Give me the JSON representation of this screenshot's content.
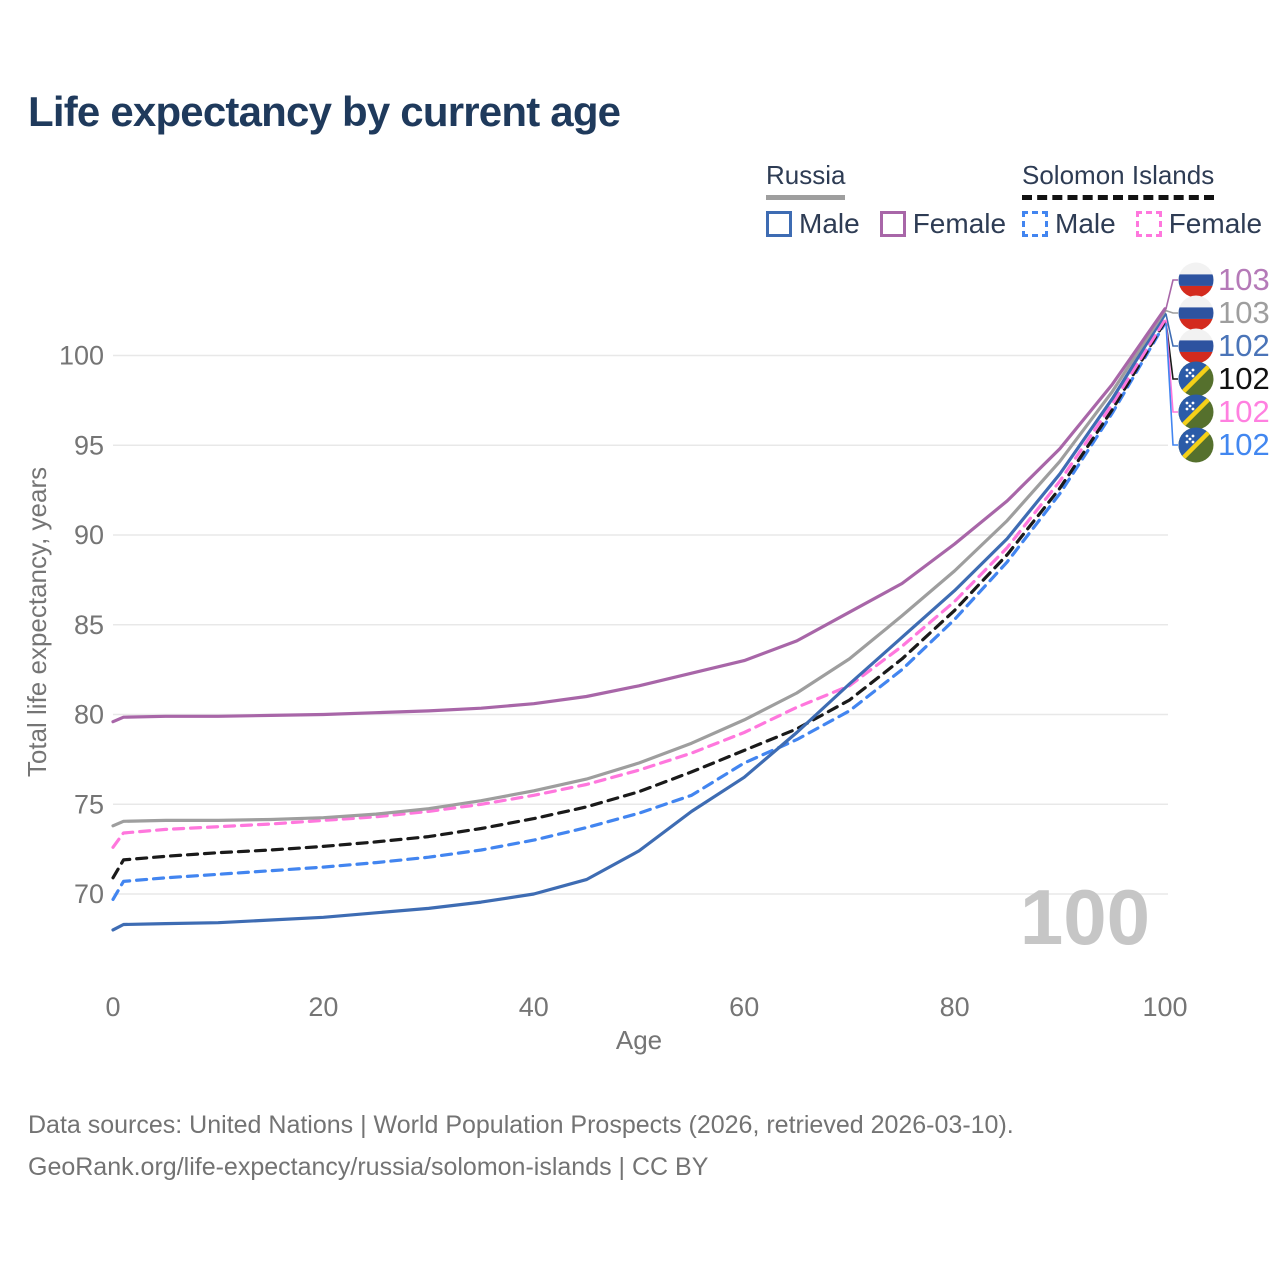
{
  "title": "Life expectancy by current age",
  "legend": {
    "groups": [
      {
        "label": "Russia",
        "line_style": "solid",
        "items": [
          {
            "label": "Male",
            "series": "russia-male"
          },
          {
            "label": "Female",
            "series": "russia-female"
          }
        ]
      },
      {
        "label": "Solomon Islands",
        "line_style": "dashed",
        "items": [
          {
            "label": "Male",
            "series": "si-male"
          },
          {
            "label": "Female",
            "series": "si-female"
          }
        ]
      }
    ]
  },
  "watermark": "100",
  "footer": {
    "line1": "Data sources: United Nations | World Population Prospects (2026, retrieved 2026-03-10).",
    "line2": "GeoRank.org/life-expectancy/russia/solomon-islands | CC BY"
  },
  "colors": {
    "title": "#1f3a5c",
    "axis_text": "#757575",
    "gridline": "#e8e8e8",
    "watermark": "#c6c6c6",
    "footer": "#737373"
  },
  "chart_data": {
    "type": "line",
    "title": "Life expectancy by current age",
    "xlabel": "Age",
    "ylabel": "Total life expectancy, years",
    "x_ticks": [
      0,
      20,
      40,
      60,
      80,
      100
    ],
    "y_ticks": [
      70,
      75,
      80,
      85,
      90,
      95,
      100
    ],
    "xlim": [
      0,
      100
    ],
    "ylim": [
      66,
      104
    ],
    "grid": "horizontal",
    "legend_position": "top-right",
    "x": [
      0,
      1,
      5,
      10,
      15,
      20,
      25,
      30,
      35,
      40,
      45,
      50,
      55,
      60,
      65,
      70,
      75,
      80,
      85,
      90,
      95,
      100
    ],
    "series": [
      {
        "id": "si-male",
        "name": "Solomon Islands Male",
        "country": "solomon-islands",
        "color": "#4285f0",
        "line_style": "dashed",
        "end_label": "102",
        "end_label_color": "#4287f0",
        "values": [
          69.7,
          70.7,
          70.9,
          71.1,
          71.3,
          71.5,
          71.75,
          72.05,
          72.45,
          73.0,
          73.7,
          74.5,
          75.5,
          77.3,
          78.6,
          80.2,
          82.5,
          85.3,
          88.5,
          92.3,
          96.8,
          101.8
        ]
      },
      {
        "id": "si-all",
        "name": "Solomon Islands (both sexes)",
        "country": "solomon-islands",
        "color": "#1a1a1a",
        "line_style": "dashed",
        "end_label": "102",
        "end_label_color": "#111111",
        "values": [
          70.9,
          71.9,
          72.1,
          72.3,
          72.45,
          72.65,
          72.9,
          73.2,
          73.65,
          74.2,
          74.85,
          75.7,
          76.8,
          78.0,
          79.2,
          80.8,
          83.1,
          85.8,
          88.9,
          92.6,
          97.0,
          101.9
        ]
      },
      {
        "id": "si-female",
        "name": "Solomon Islands Female",
        "country": "solomon-islands",
        "color": "#ff77dd",
        "line_style": "dashed",
        "end_label": "102",
        "end_label_color": "#ff80e0",
        "values": [
          72.6,
          73.4,
          73.6,
          73.75,
          73.9,
          74.1,
          74.3,
          74.6,
          75.0,
          75.5,
          76.1,
          76.9,
          77.85,
          79.0,
          80.4,
          81.6,
          83.8,
          86.3,
          89.3,
          93.0,
          97.3,
          102.0
        ]
      },
      {
        "id": "russia-male",
        "name": "Russia Male",
        "country": "russia",
        "color": "#3e6cb3",
        "line_style": "solid",
        "end_label": "102",
        "end_label_color": "#4a74b8",
        "values": [
          68.0,
          68.3,
          68.35,
          68.4,
          68.55,
          68.7,
          68.95,
          69.2,
          69.55,
          70.0,
          70.8,
          72.4,
          74.6,
          76.5,
          79.0,
          81.7,
          84.3,
          86.9,
          89.8,
          93.4,
          97.6,
          102.3
        ]
      },
      {
        "id": "russia-all",
        "name": "Russia (both sexes)",
        "country": "russia",
        "color": "#9e9e9e",
        "line_style": "solid",
        "end_label": "103",
        "end_label_color": "#9e9e9e",
        "values": [
          73.8,
          74.05,
          74.1,
          74.1,
          74.15,
          74.25,
          74.45,
          74.75,
          75.2,
          75.75,
          76.4,
          77.3,
          78.4,
          79.7,
          81.2,
          83.1,
          85.5,
          88.0,
          90.8,
          94.1,
          98.0,
          102.5
        ]
      },
      {
        "id": "russia-female",
        "name": "Russia Female",
        "country": "russia",
        "color": "#a866a8",
        "line_style": "solid",
        "end_label": "103",
        "end_label_color": "#b57ab8",
        "values": [
          79.6,
          79.85,
          79.9,
          79.9,
          79.95,
          80.0,
          80.1,
          80.2,
          80.35,
          80.6,
          81.0,
          81.6,
          82.3,
          83.0,
          84.1,
          85.7,
          87.3,
          89.5,
          91.9,
          94.8,
          98.4,
          102.6
        ]
      }
    ],
    "callout_order": [
      "russia-female",
      "russia-all",
      "russia-male",
      "si-all",
      "si-female",
      "si-male"
    ]
  }
}
